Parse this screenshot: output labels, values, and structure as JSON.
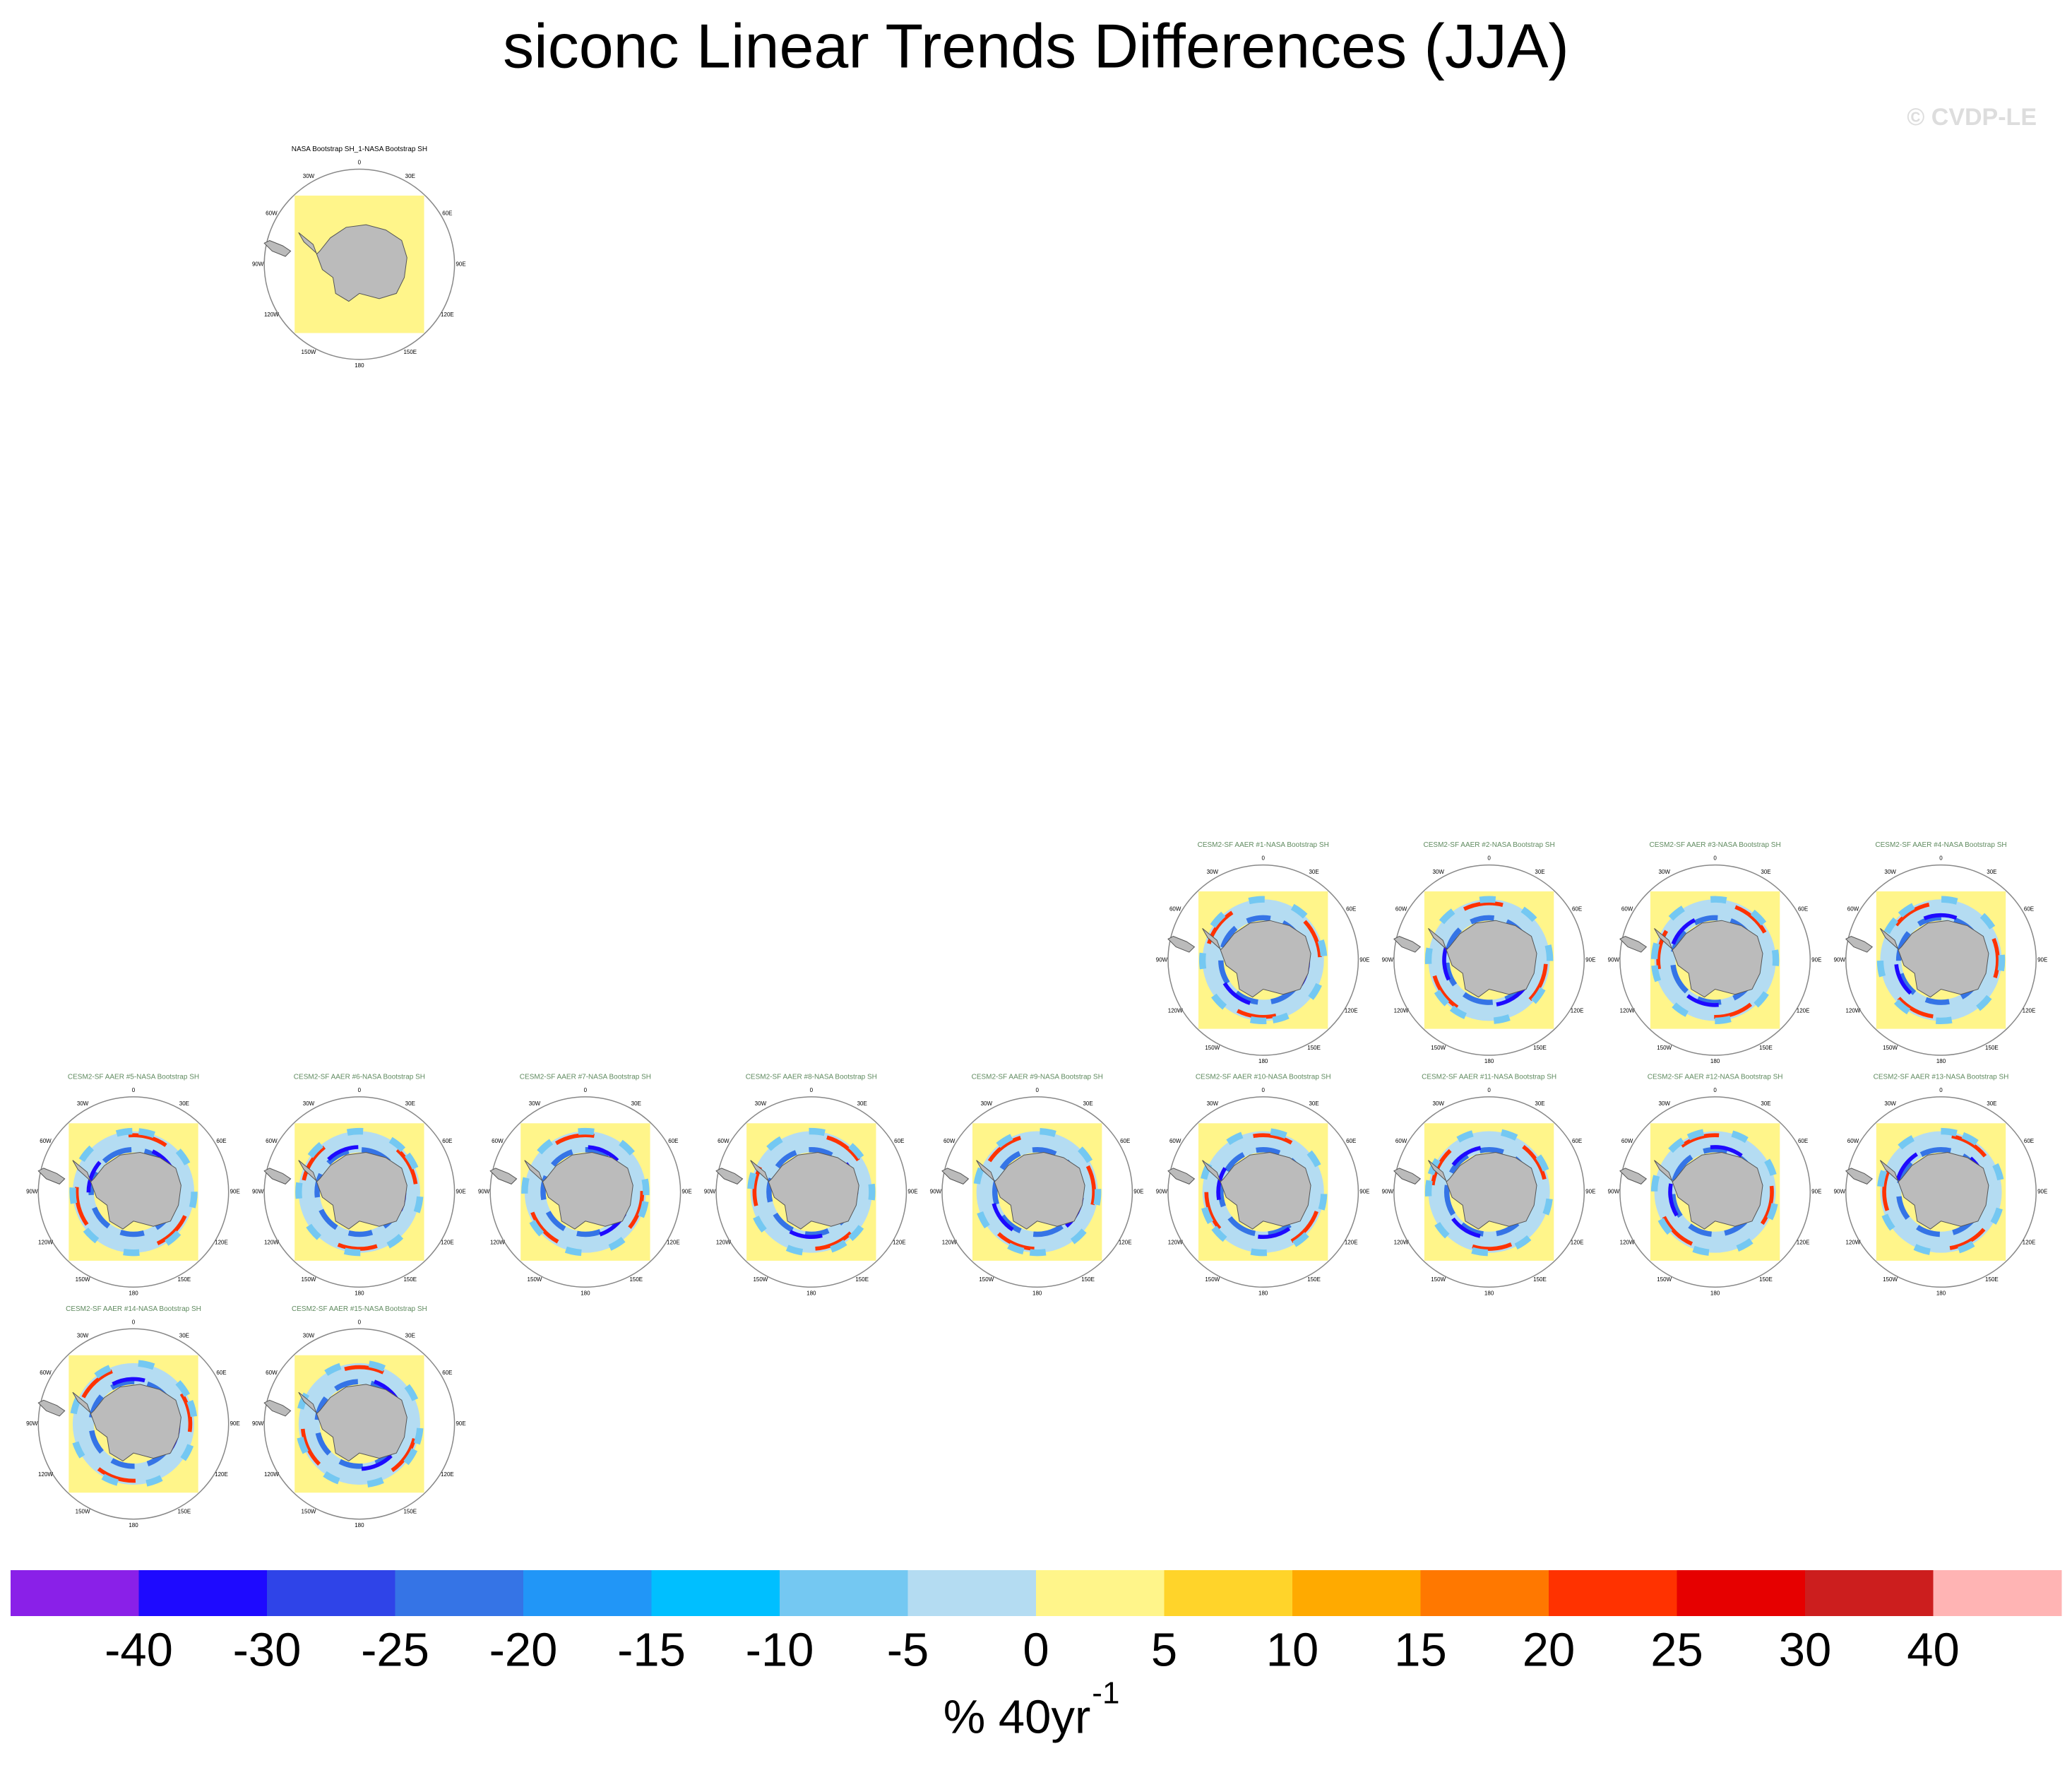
{
  "title": "siconc Linear Trends Differences (JJA)",
  "watermark": "© CVDP-LE",
  "lon_labels": [
    "0",
    "30E",
    "60E",
    "90E",
    "120E",
    "150E",
    "180",
    "150W",
    "120W",
    "90W",
    "60W",
    "30W"
  ],
  "panels": [
    {
      "title": "NASA Bootstrap SH_1-NASA Bootstrap SH"
    },
    {
      "title": "CESM2-SF AAER #1-NASA Bootstrap SH"
    },
    {
      "title": "CESM2-SF AAER #2-NASA Bootstrap SH"
    },
    {
      "title": "CESM2-SF AAER #3-NASA Bootstrap SH"
    },
    {
      "title": "CESM2-SF AAER #4-NASA Bootstrap SH"
    },
    {
      "title": "CESM2-SF AAER #5-NASA Bootstrap SH"
    },
    {
      "title": "CESM2-SF AAER #6-NASA Bootstrap SH"
    },
    {
      "title": "CESM2-SF AAER #7-NASA Bootstrap SH"
    },
    {
      "title": "CESM2-SF AAER #8-NASA Bootstrap SH"
    },
    {
      "title": "CESM2-SF AAER #9-NASA Bootstrap SH"
    },
    {
      "title": "CESM2-SF AAER #10-NASA Bootstrap SH"
    },
    {
      "title": "CESM2-SF AAER #11-NASA Bootstrap SH"
    },
    {
      "title": "CESM2-SF AAER #12-NASA Bootstrap SH"
    },
    {
      "title": "CESM2-SF AAER #13-NASA Bootstrap SH"
    },
    {
      "title": "CESM2-SF AAER #14-NASA Bootstrap SH"
    },
    {
      "title": "CESM2-SF AAER #15-NASA Bootstrap SH"
    }
  ],
  "colorbar": {
    "levels": [
      -40,
      -30,
      -25,
      -20,
      -15,
      -10,
      -5,
      0,
      5,
      10,
      15,
      20,
      25,
      30,
      40
    ],
    "colors": [
      "#8a20e8",
      "#1e0aff",
      "#2f44e8",
      "#3574e6",
      "#2196f7",
      "#00bfff",
      "#74c8f2",
      "#b4dcf2",
      "#fff58a",
      "#ffd42a",
      "#ffaa00",
      "#ff7800",
      "#ff3200",
      "#e60000",
      "#cc1e1e",
      "#ffb4b4"
    ],
    "label": "% 40yr",
    "label_superscript": "-1"
  }
}
